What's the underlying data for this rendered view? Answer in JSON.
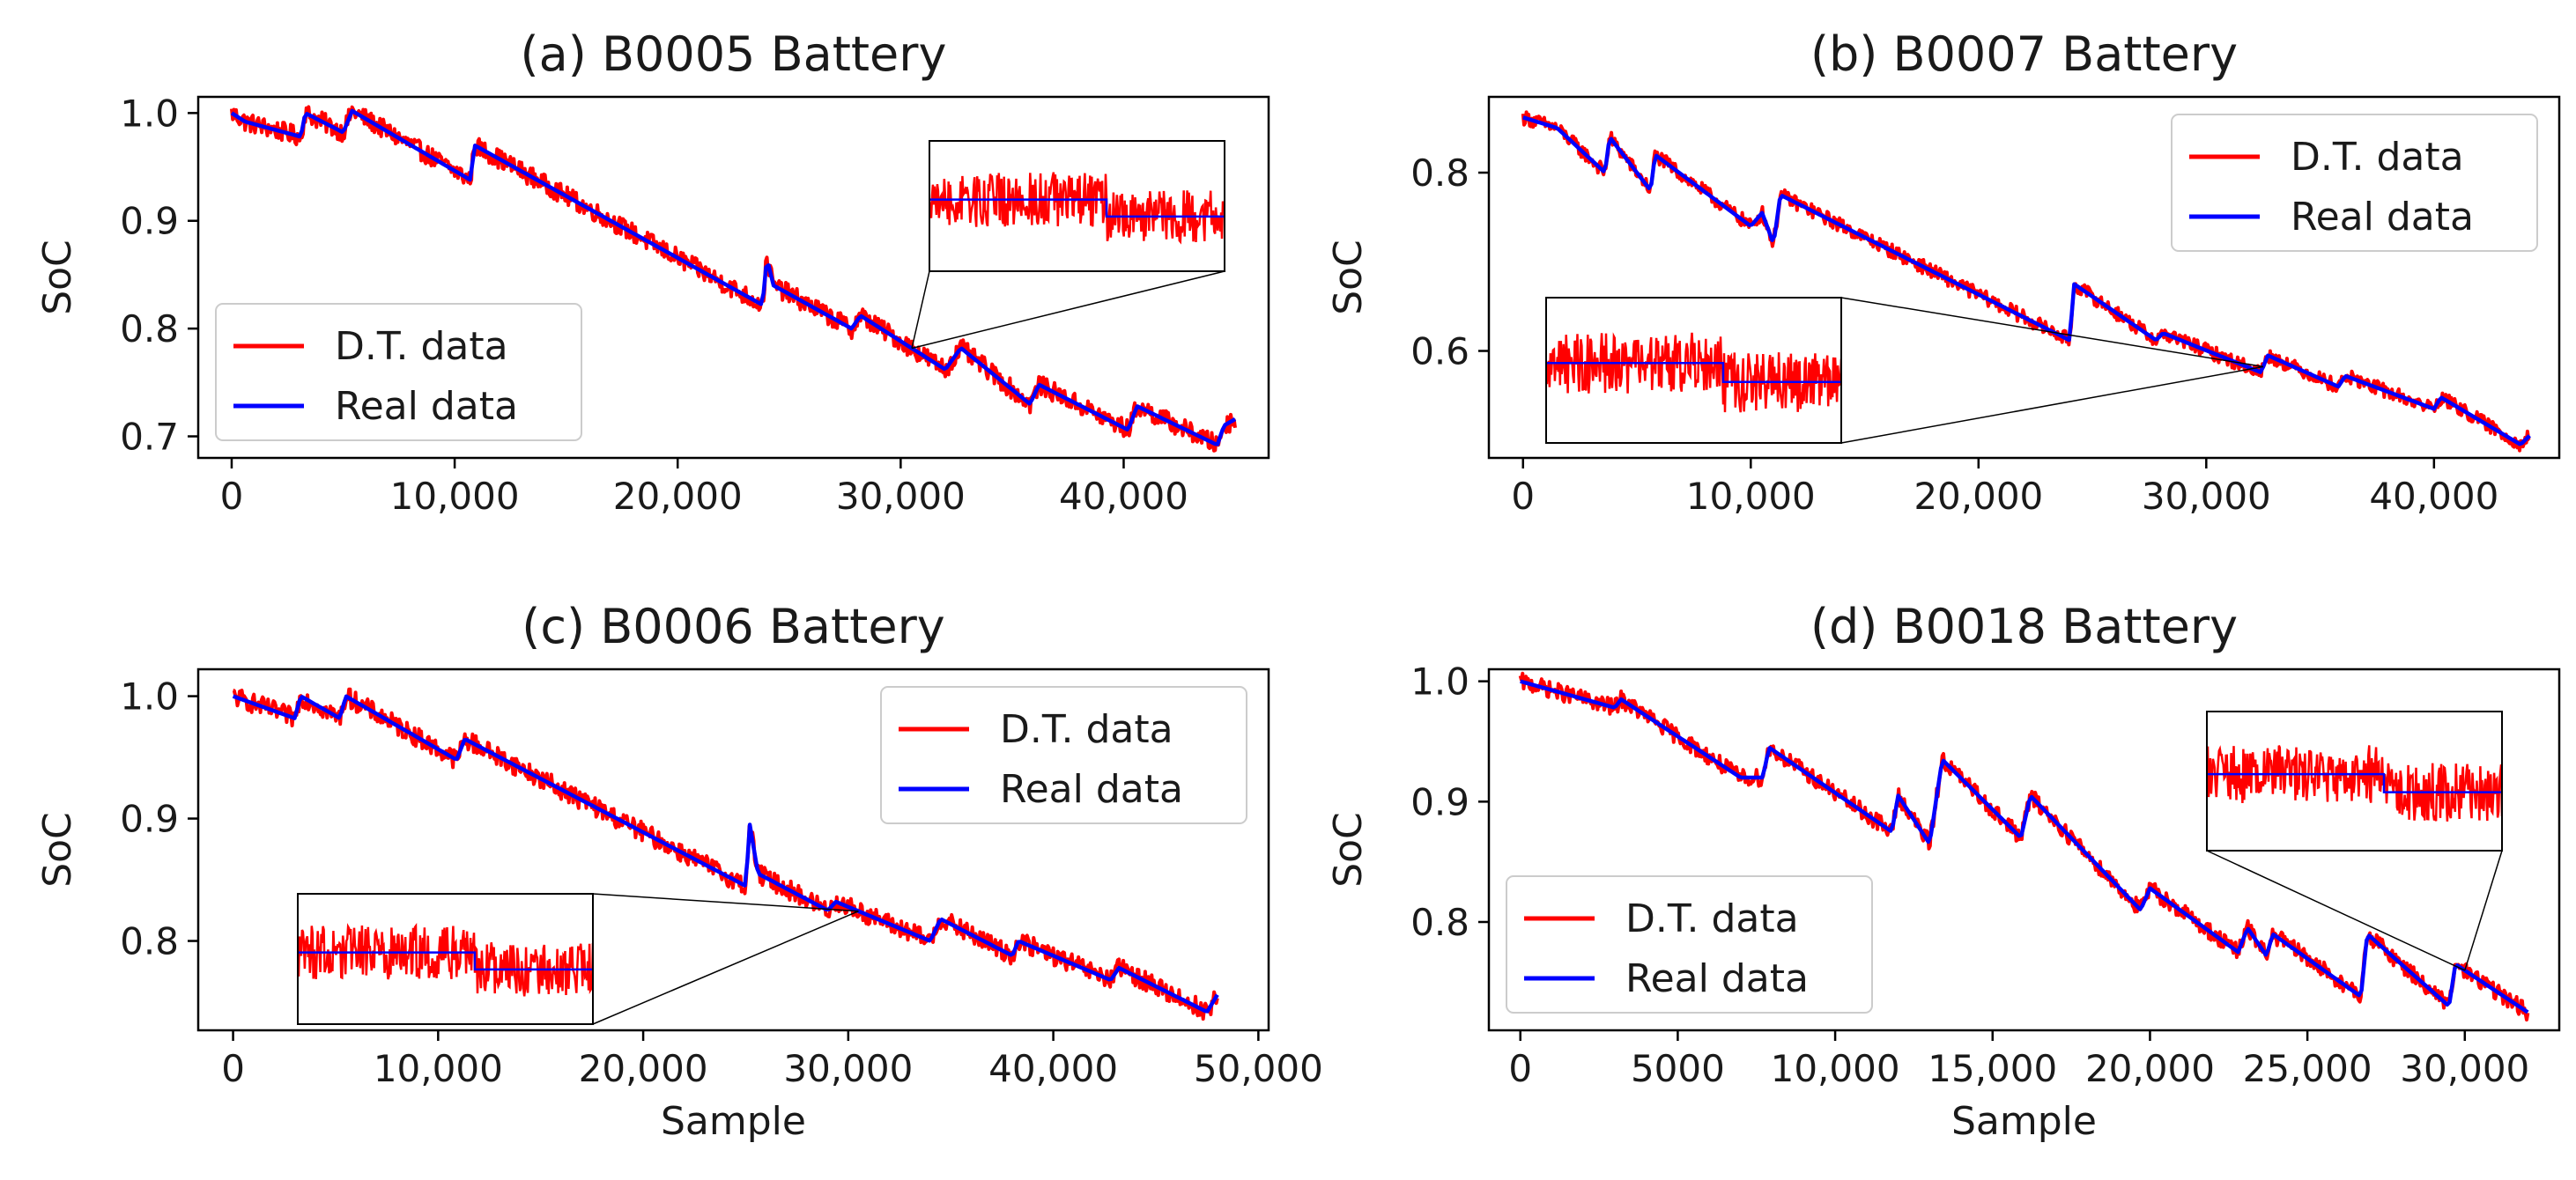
{
  "chart_data": [
    {
      "id": "a",
      "type": "line",
      "title": "(a)   B0005 Battery",
      "xlabel": "",
      "ylabel": "SoC",
      "xlim": [
        -1500,
        46500
      ],
      "ylim": [
        0.68,
        1.015
      ],
      "xticks": [
        0,
        10000,
        20000,
        30000,
        40000
      ],
      "xtick_labels": [
        "0",
        "10,000",
        "20,000",
        "30,000",
        "40,000"
      ],
      "yticks": [
        0.7,
        0.8,
        0.9,
        1.0
      ],
      "ytick_labels": [
        "0.7",
        "0.8",
        "0.9",
        "1.0"
      ],
      "legend": {
        "position": "lower-left",
        "entries": [
          "D.T. data",
          "Real data"
        ]
      },
      "inset": {
        "placement": "upper-right",
        "x_range": [
          29500,
          31500
        ]
      },
      "series": [
        {
          "name": "D.T. data",
          "color": "#ff0000",
          "noise": 0.009,
          "x": [
            0,
            600,
            3100,
            3300,
            5000,
            5400,
            10700,
            10900,
            23800,
            24000,
            24300,
            27800,
            28200,
            32000,
            32700,
            35800,
            36200,
            40200,
            40600,
            44200,
            44500,
            45000
          ],
          "values": [
            1.0,
            0.992,
            0.978,
            1.0,
            0.982,
            1.002,
            0.938,
            0.97,
            0.822,
            0.865,
            0.84,
            0.8,
            0.812,
            0.762,
            0.782,
            0.73,
            0.748,
            0.706,
            0.728,
            0.692,
            0.71,
            0.716
          ]
        },
        {
          "name": "Real data",
          "color": "#0000ff",
          "noise": 0,
          "x": [
            0,
            600,
            3100,
            3300,
            5000,
            5400,
            10700,
            10900,
            23800,
            24000,
            24300,
            27800,
            28200,
            32000,
            32700,
            35800,
            36200,
            40200,
            40600,
            44200,
            44500,
            45000
          ],
          "values": [
            1.0,
            0.992,
            0.978,
            1.0,
            0.982,
            1.002,
            0.938,
            0.97,
            0.822,
            0.865,
            0.84,
            0.8,
            0.812,
            0.762,
            0.782,
            0.73,
            0.748,
            0.706,
            0.728,
            0.692,
            0.71,
            0.716
          ]
        }
      ]
    },
    {
      "id": "b",
      "type": "line",
      "title": "(b)  B0007 Battery",
      "xlabel": "",
      "ylabel": "SoC",
      "xlim": [
        -1500,
        45500
      ],
      "ylim": [
        0.48,
        0.885
      ],
      "xticks": [
        0,
        10000,
        20000,
        30000,
        40000
      ],
      "xtick_labels": [
        "0",
        "10,000",
        "20,000",
        "30,000",
        "40,000"
      ],
      "yticks": [
        0.6,
        0.8
      ],
      "ytick_labels": [
        "0.6",
        "0.8"
      ],
      "legend": {
        "position": "upper-right",
        "entries": [
          "D.T. data",
          "Real data"
        ]
      },
      "inset": {
        "placement": "lower-left",
        "x_range": [
          31500,
          33500
        ]
      },
      "series": [
        {
          "name": "D.T. data",
          "color": "#ff0000",
          "noise": 0.008,
          "x": [
            0,
            1500,
            3600,
            3800,
            5600,
            5800,
            10000,
            10500,
            11000,
            11300,
            24000,
            24200,
            27800,
            28100,
            32400,
            32700,
            35800,
            36100,
            40000,
            40300,
            43800,
            44200
          ],
          "values": [
            0.862,
            0.85,
            0.8,
            0.84,
            0.78,
            0.82,
            0.74,
            0.755,
            0.72,
            0.775,
            0.612,
            0.675,
            0.612,
            0.62,
            0.576,
            0.595,
            0.56,
            0.572,
            0.535,
            0.548,
            0.495,
            0.505
          ]
        },
        {
          "name": "Real data",
          "color": "#0000ff",
          "noise": 0,
          "x": [
            0,
            1500,
            3600,
            3800,
            5600,
            5800,
            10000,
            10500,
            11000,
            11300,
            24000,
            24200,
            27800,
            28100,
            32400,
            32700,
            35800,
            36100,
            40000,
            40300,
            43800,
            44200
          ],
          "values": [
            0.862,
            0.85,
            0.8,
            0.84,
            0.78,
            0.82,
            0.74,
            0.755,
            0.72,
            0.775,
            0.612,
            0.675,
            0.612,
            0.62,
            0.576,
            0.595,
            0.56,
            0.572,
            0.535,
            0.548,
            0.495,
            0.505
          ]
        }
      ]
    },
    {
      "id": "c",
      "type": "line",
      "title": "(c)   B0006 Battery",
      "xlabel": "Sample",
      "ylabel": "SoC",
      "xlim": [
        -1700,
        50500
      ],
      "ylim": [
        0.727,
        1.022
      ],
      "xticks": [
        0,
        10000,
        20000,
        30000,
        40000,
        50000
      ],
      "xtick_labels": [
        "0",
        "10,000",
        "20,000",
        "30,000",
        "40,000",
        "50,000"
      ],
      "yticks": [
        0.8,
        0.9,
        1.0
      ],
      "ytick_labels": [
        "0.8",
        "0.9",
        "1.0"
      ],
      "legend": {
        "position": "upper-right",
        "entries": [
          "D.T. data",
          "Real data"
        ]
      },
      "inset": {
        "placement": "lower-left",
        "x_range": [
          29500,
          31500
        ]
      },
      "series": [
        {
          "name": "D.T. data",
          "color": "#ff0000",
          "noise": 0.008,
          "x": [
            0,
            3000,
            3300,
            5200,
            5500,
            10900,
            11300,
            25000,
            25200,
            25600,
            29000,
            29400,
            34000,
            34500,
            38000,
            38300,
            42800,
            43200,
            47500,
            48000
          ],
          "values": [
            1.0,
            0.982,
            1.0,
            0.982,
            1.0,
            0.948,
            0.965,
            0.845,
            0.895,
            0.855,
            0.825,
            0.832,
            0.8,
            0.818,
            0.788,
            0.8,
            0.768,
            0.778,
            0.742,
            0.756
          ]
        },
        {
          "name": "Real data",
          "color": "#0000ff",
          "noise": 0,
          "x": [
            0,
            3000,
            3300,
            5200,
            5500,
            10900,
            11300,
            25000,
            25200,
            25600,
            29000,
            29400,
            34000,
            34500,
            38000,
            38300,
            42800,
            43200,
            47500,
            48000
          ],
          "values": [
            1.0,
            0.982,
            1.0,
            0.982,
            1.0,
            0.948,
            0.965,
            0.845,
            0.895,
            0.855,
            0.825,
            0.832,
            0.8,
            0.818,
            0.788,
            0.8,
            0.768,
            0.778,
            0.742,
            0.756
          ]
        }
      ]
    },
    {
      "id": "d",
      "type": "line",
      "title": "(d)   B0018 Battery",
      "xlabel": "Sample",
      "ylabel": "SoC",
      "xlim": [
        -1000,
        33000
      ],
      "ylim": [
        0.71,
        1.01
      ],
      "xticks": [
        0,
        5000,
        10000,
        15000,
        20000,
        25000,
        30000
      ],
      "xtick_labels": [
        "0",
        "5000",
        "10,000",
        "15,000",
        "20,000",
        "25,000",
        "30,000"
      ],
      "yticks": [
        0.8,
        0.9,
        1.0
      ],
      "ytick_labels": [
        "0.8",
        "0.9",
        "1.0"
      ],
      "legend": {
        "position": "lower-left",
        "entries": [
          "D.T. data",
          "Real data"
        ]
      },
      "inset": {
        "placement": "upper-right",
        "x_range": [
          29000,
          31000
        ]
      },
      "series": [
        {
          "name": "D.T. data",
          "color": "#ff0000",
          "noise": 0.007,
          "x": [
            0,
            3000,
            3200,
            7000,
            7700,
            7900,
            11800,
            12000,
            13000,
            13400,
            15900,
            16200,
            19700,
            20000,
            22800,
            23100,
            23700,
            23900,
            26700,
            26900,
            29500,
            29700,
            32000
          ],
          "values": [
            1.0,
            0.978,
            0.985,
            0.92,
            0.92,
            0.945,
            0.875,
            0.905,
            0.865,
            0.935,
            0.87,
            0.905,
            0.81,
            0.828,
            0.775,
            0.795,
            0.772,
            0.79,
            0.738,
            0.79,
            0.73,
            0.765,
            0.725
          ]
        },
        {
          "name": "Real data",
          "color": "#0000ff",
          "noise": 0,
          "x": [
            0,
            3000,
            3200,
            7000,
            7700,
            7900,
            11800,
            12000,
            13000,
            13400,
            15900,
            16200,
            19700,
            20000,
            22800,
            23100,
            23700,
            23900,
            26700,
            26900,
            29500,
            29700,
            32000
          ],
          "values": [
            1.0,
            0.978,
            0.985,
            0.92,
            0.92,
            0.945,
            0.875,
            0.905,
            0.865,
            0.935,
            0.87,
            0.905,
            0.81,
            0.828,
            0.775,
            0.795,
            0.772,
            0.79,
            0.738,
            0.79,
            0.73,
            0.765,
            0.725
          ]
        }
      ]
    }
  ]
}
